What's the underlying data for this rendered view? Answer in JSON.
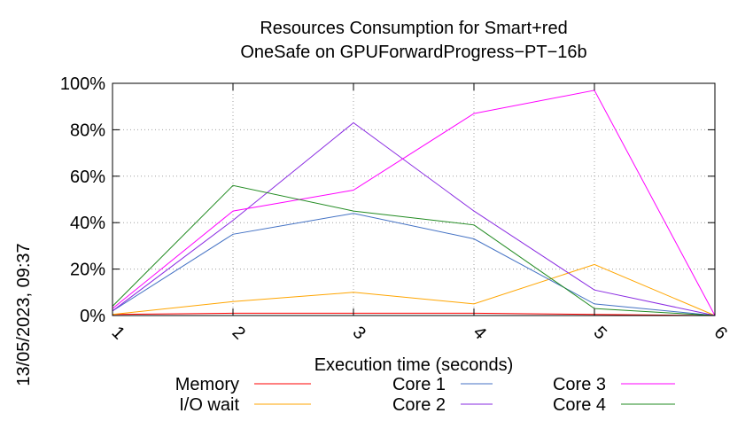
{
  "chart_data": {
    "type": "line",
    "title": [
      "Resources Consumption for Smart+red",
      "OneSafe on GPUForwardProgress−PT−16b"
    ],
    "xlabel": "Execution time (seconds)",
    "ylabel": "",
    "side_label": "13/05/2023, 09:37",
    "x": [
      1,
      2,
      3,
      4,
      5,
      6
    ],
    "xlim": [
      1,
      6
    ],
    "ylim": [
      0,
      100
    ],
    "x_ticks": [
      "1",
      "2",
      "3",
      "4",
      "5",
      "6"
    ],
    "y_ticks": [
      {
        "value": 0,
        "label": "0%"
      },
      {
        "value": 20,
        "label": "20%"
      },
      {
        "value": 40,
        "label": "40%"
      },
      {
        "value": 60,
        "label": "60%"
      },
      {
        "value": 80,
        "label": "80%"
      },
      {
        "value": 100,
        "label": "100%"
      }
    ],
    "grid": true,
    "legend_position": "bottom",
    "series": [
      {
        "name": "Memory",
        "color": "#ff0000",
        "values": [
          0.5,
          1,
          1,
          1,
          0.5,
          0
        ]
      },
      {
        "name": "I/O wait",
        "color": "#ffa500",
        "values": [
          0.5,
          6,
          10,
          5,
          22,
          0
        ]
      },
      {
        "name": "Core 1",
        "color": "#4472c4",
        "values": [
          2,
          35,
          44,
          33,
          5,
          0
        ]
      },
      {
        "name": "Core 2",
        "color": "#8a2be2",
        "values": [
          2,
          41,
          83,
          45,
          11,
          0
        ]
      },
      {
        "name": "Core 3",
        "color": "#ff00ff",
        "values": [
          3,
          45,
          54,
          87,
          97,
          0
        ]
      },
      {
        "name": "Core 4",
        "color": "#228b22",
        "values": [
          4,
          56,
          45,
          39,
          3,
          0
        ]
      }
    ]
  }
}
